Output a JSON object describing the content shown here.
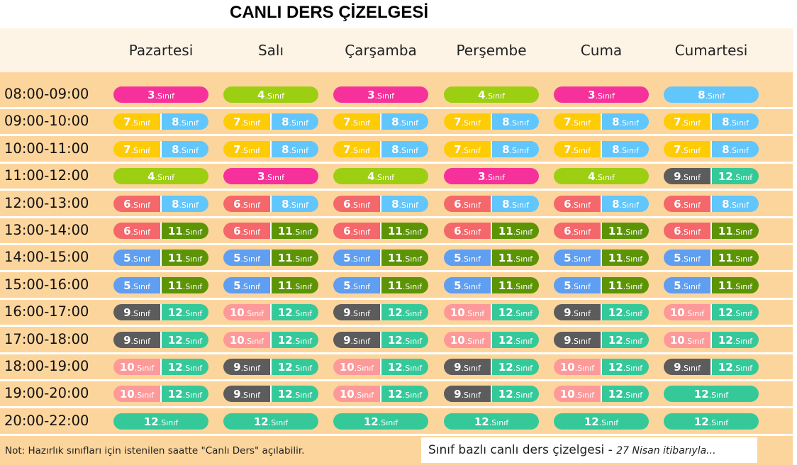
{
  "title": "CANLI DERS ÇİZELGESİ",
  "days": [
    "Pazartesi",
    "Salı",
    "Çarşamba",
    "Perşembe",
    "Cuma",
    "Cumartesi"
  ],
  "class_suffix": ".Sınıf",
  "class_colors": {
    "3": "#f7319c",
    "4": "#9ccf12",
    "5": "#5f9ef0",
    "6": "#f4676b",
    "7": "#fecb07",
    "8": "#61c6fb",
    "9": "#5c5c5c",
    "10": "#fe999a",
    "11": "#5c9406",
    "12": "#35c99a"
  },
  "schedule": [
    {
      "time": "08:00-09:00",
      "cells": [
        [
          "3"
        ],
        [
          "4"
        ],
        [
          "3"
        ],
        [
          "4"
        ],
        [
          "3"
        ],
        [
          "8"
        ]
      ]
    },
    {
      "time": "09:00-10:00",
      "cells": [
        [
          "7",
          "8"
        ],
        [
          "7",
          "8"
        ],
        [
          "7",
          "8"
        ],
        [
          "7",
          "8"
        ],
        [
          "7",
          "8"
        ],
        [
          "7",
          "8"
        ]
      ]
    },
    {
      "time": "10:00-11:00",
      "cells": [
        [
          "7",
          "8"
        ],
        [
          "7",
          "8"
        ],
        [
          "7",
          "8"
        ],
        [
          "7",
          "8"
        ],
        [
          "7",
          "8"
        ],
        [
          "7",
          "8"
        ]
      ]
    },
    {
      "time": "11:00-12:00",
      "cells": [
        [
          "4"
        ],
        [
          "3"
        ],
        [
          "4"
        ],
        [
          "3"
        ],
        [
          "4"
        ],
        [
          "9",
          "12"
        ]
      ]
    },
    {
      "time": "12:00-13:00",
      "cells": [
        [
          "6",
          "8"
        ],
        [
          "6",
          "8"
        ],
        [
          "6",
          "8"
        ],
        [
          "6",
          "8"
        ],
        [
          "6",
          "8"
        ],
        [
          "6",
          "8"
        ]
      ]
    },
    {
      "time": "13:00-14:00",
      "cells": [
        [
          "6",
          "11"
        ],
        [
          "6",
          "11"
        ],
        [
          "6",
          "11"
        ],
        [
          "6",
          "11"
        ],
        [
          "6",
          "11"
        ],
        [
          "6",
          "11"
        ]
      ]
    },
    {
      "time": "14:00-15:00",
      "cells": [
        [
          "5",
          "11"
        ],
        [
          "5",
          "11"
        ],
        [
          "5",
          "11"
        ],
        [
          "5",
          "11"
        ],
        [
          "5",
          "11"
        ],
        [
          "5",
          "11"
        ]
      ]
    },
    {
      "time": "15:00-16:00",
      "cells": [
        [
          "5",
          "11"
        ],
        [
          "5",
          "11"
        ],
        [
          "5",
          "11"
        ],
        [
          "5",
          "11"
        ],
        [
          "5",
          "11"
        ],
        [
          "5",
          "11"
        ]
      ]
    },
    {
      "time": "16:00-17:00",
      "cells": [
        [
          "9",
          "12"
        ],
        [
          "10",
          "12"
        ],
        [
          "9",
          "12"
        ],
        [
          "10",
          "12"
        ],
        [
          "9",
          "12"
        ],
        [
          "10",
          "12"
        ]
      ]
    },
    {
      "time": "17:00-18:00",
      "cells": [
        [
          "9",
          "12"
        ],
        [
          "10",
          "12"
        ],
        [
          "9",
          "12"
        ],
        [
          "10",
          "12"
        ],
        [
          "9",
          "12"
        ],
        [
          "10",
          "12"
        ]
      ]
    },
    {
      "time": "18:00-19:00",
      "cells": [
        [
          "10",
          "12"
        ],
        [
          "9",
          "12"
        ],
        [
          "10",
          "12"
        ],
        [
          "9",
          "12"
        ],
        [
          "10",
          "12"
        ],
        [
          "9",
          "12"
        ]
      ]
    },
    {
      "time": "19:00-20:00",
      "cells": [
        [
          "10",
          "12"
        ],
        [
          "9",
          "12"
        ],
        [
          "10",
          "12"
        ],
        [
          "9",
          "12"
        ],
        [
          "10",
          "12"
        ],
        [
          "12"
        ]
      ]
    },
    {
      "time": "20:00-22:00",
      "cells": [
        [
          "12"
        ],
        [
          "12"
        ],
        [
          "12"
        ],
        [
          "12"
        ],
        [
          "12"
        ],
        [
          "12"
        ]
      ]
    }
  ],
  "note": "Not: Hazırlık sınıfları için istenilen saatte \"Canlı Ders\" açılabilir.",
  "info_box": {
    "main": "Sınıf bazlı canlı ders çizelgesi - ",
    "date": "27 Nisan itibarıyla..."
  }
}
